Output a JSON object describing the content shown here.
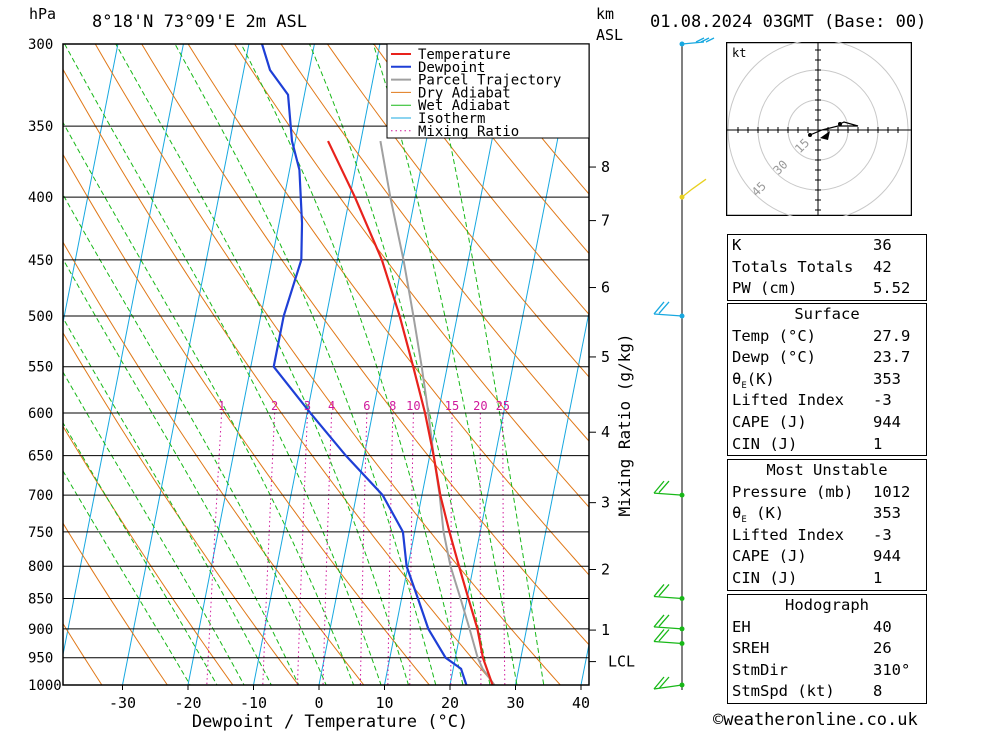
{
  "header": {
    "hpa_unit": "hPa",
    "location": "8°18'N  73°09'E  2m  ASL",
    "km_unit": "km",
    "asl_unit": "ASL",
    "datetime": "01.08.2024  03GMT  (Base: 00)"
  },
  "footer": {
    "copyright": "©weatheronline.co.uk"
  },
  "colors": {
    "temperature": "#e8221c",
    "dewpoint": "#1e3fd6",
    "parcel": "#a0a0a0",
    "dry_adiabat": "#e07818",
    "wet_adiabat": "#18b818",
    "isotherm": "#18a8e0",
    "mixing_ratio": "#d0189c"
  },
  "chart_data": {
    "type": "line",
    "title": "",
    "xlabel": "Dewpoint / Temperature (°C)",
    "ylabel_right": "Mixing Ratio (g/kg)",
    "x_ticks": [
      -30,
      -20,
      -10,
      0,
      10,
      20,
      30,
      40
    ],
    "pressure_levels": [
      300,
      350,
      400,
      450,
      500,
      550,
      600,
      650,
      700,
      750,
      800,
      850,
      900,
      950,
      1000
    ],
    "km_ticks": [
      {
        "label": "8",
        "p": 378
      },
      {
        "label": "7",
        "p": 418
      },
      {
        "label": "6",
        "p": 474
      },
      {
        "label": "5",
        "p": 540
      },
      {
        "label": "4",
        "p": 622
      },
      {
        "label": "3",
        "p": 710
      },
      {
        "label": "2",
        "p": 805
      },
      {
        "label": "1",
        "p": 902
      },
      {
        "label": "LCL",
        "p": 957
      }
    ],
    "mixing_ratio_labels": [
      "1",
      "2",
      "3",
      "4",
      "6",
      "8",
      "10",
      "15",
      "20",
      "25"
    ],
    "legend": {
      "placement": "top-right",
      "items": [
        "Temperature",
        "Dewpoint",
        "Parcel Trajectory",
        "Dry Adiabat",
        "Wet Adiabat",
        "Isotherm",
        "Mixing Ratio"
      ]
    },
    "series": [
      {
        "name": "Temperature",
        "points": [
          [
            1015,
            27.9
          ],
          [
            1000,
            26.5
          ],
          [
            950,
            24.2
          ],
          [
            900,
            22.5
          ],
          [
            850,
            20.2
          ],
          [
            800,
            17.8
          ],
          [
            750,
            15.3
          ],
          [
            700,
            12.8
          ],
          [
            650,
            10.6
          ],
          [
            600,
            8.0
          ],
          [
            550,
            4.8
          ],
          [
            500,
            1.2
          ],
          [
            450,
            -3.2
          ],
          [
            400,
            -9.2
          ],
          [
            360,
            -15.0
          ]
        ]
      },
      {
        "name": "Dewpoint",
        "points": [
          [
            1015,
            23.7
          ],
          [
            1000,
            22.5
          ],
          [
            970,
            21.2
          ],
          [
            950,
            18.5
          ],
          [
            900,
            15.0
          ],
          [
            850,
            12.5
          ],
          [
            800,
            9.8
          ],
          [
            750,
            8.2
          ],
          [
            700,
            4.0
          ],
          [
            650,
            -2.8
          ],
          [
            600,
            -9.5
          ],
          [
            550,
            -16.5
          ],
          [
            500,
            -16.5
          ],
          [
            450,
            -15.5
          ],
          [
            420,
            -16.5
          ],
          [
            380,
            -18.5
          ],
          [
            360,
            -20.5
          ],
          [
            330,
            -22.5
          ],
          [
            315,
            -26.0
          ],
          [
            300,
            -28.0
          ]
        ]
      },
      {
        "name": "Parcel Trajectory",
        "points": [
          [
            1015,
            27.9
          ],
          [
            970,
            24.5
          ],
          [
            950,
            23.4
          ],
          [
            900,
            21.3
          ],
          [
            850,
            19.0
          ],
          [
            800,
            16.5
          ],
          [
            750,
            14.4
          ],
          [
            700,
            12.7
          ],
          [
            650,
            10.6
          ],
          [
            600,
            8.5
          ],
          [
            550,
            6.1
          ],
          [
            500,
            3.3
          ],
          [
            450,
            0.1
          ],
          [
            400,
            -3.8
          ],
          [
            360,
            -7.0
          ]
        ]
      }
    ]
  },
  "hodograph": {
    "unit": "kt",
    "ring_labels": [
      "15",
      "30",
      "45"
    ]
  },
  "indices": {
    "K": {
      "label": "K",
      "value": "36"
    },
    "TT": {
      "label": "Totals Totals",
      "value": "42"
    },
    "PW": {
      "label": "PW (cm)",
      "value": "5.52"
    }
  },
  "surface": {
    "title": "Surface",
    "temp": {
      "label": "Temp (°C)",
      "value": "27.9"
    },
    "dewp": {
      "label": "Dewp (°C)",
      "value": "23.7"
    },
    "theta_e": {
      "label_main": "θ",
      "label_sub": "E",
      "label_unit": "(K)",
      "value": "353"
    },
    "lifted": {
      "label": "Lifted Index",
      "value": "-3"
    },
    "cape": {
      "label": "CAPE (J)",
      "value": "944"
    },
    "cin": {
      "label": "CIN (J)",
      "value": "1"
    }
  },
  "most_unstable": {
    "title": "Most Unstable",
    "pressure": {
      "label": "Pressure (mb)",
      "value": "1012"
    },
    "theta_e": {
      "label_main": "θ",
      "label_sub": "E",
      "label_unit": "(K)",
      "value": "353"
    },
    "lifted": {
      "label": "Lifted Index",
      "value": "-3"
    },
    "cape": {
      "label": "CAPE (J)",
      "value": "944"
    },
    "cin": {
      "label": "CIN (J)",
      "value": "1"
    }
  },
  "hodograph_params": {
    "title": "Hodograph",
    "eh": {
      "label": "EH",
      "value": "40"
    },
    "sreh": {
      "label": "SREH",
      "value": "26"
    },
    "stmdir": {
      "label": "StmDir",
      "value": "310°"
    },
    "stmspd": {
      "label": "StmSpd (kt)",
      "value": "8"
    }
  }
}
